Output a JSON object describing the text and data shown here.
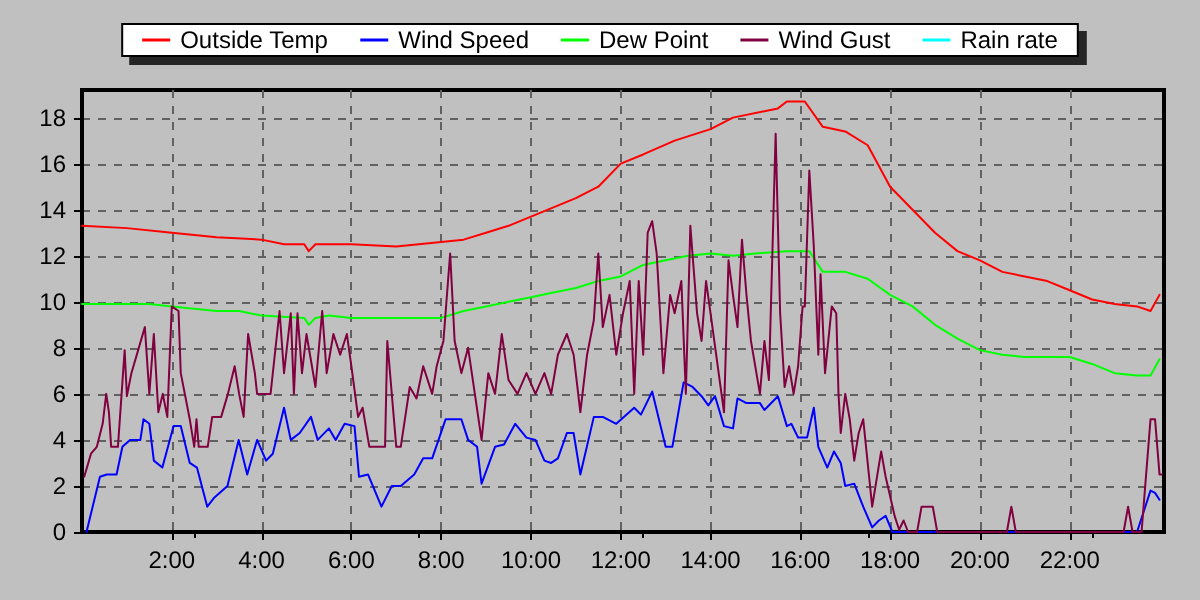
{
  "chart_data": {
    "type": "line",
    "xlim": [
      0,
      24.1
    ],
    "ylim": [
      0,
      19.2
    ],
    "xticks": [
      {
        "value": 2,
        "label": "2:00"
      },
      {
        "value": 4,
        "label": "4:00"
      },
      {
        "value": 6,
        "label": "6:00"
      },
      {
        "value": 8,
        "label": "8:00"
      },
      {
        "value": 10,
        "label": "10:00"
      },
      {
        "value": 12,
        "label": "12:00"
      },
      {
        "value": 14,
        "label": "14:00"
      },
      {
        "value": 16,
        "label": "16:00"
      },
      {
        "value": 18,
        "label": "18:00"
      },
      {
        "value": 20,
        "label": "20:00"
      },
      {
        "value": 22,
        "label": "22:00"
      }
    ],
    "yticks": [
      0,
      2,
      4,
      6,
      8,
      10,
      12,
      14,
      16,
      18
    ],
    "grid": true,
    "legend": "top",
    "marker": "none",
    "line_style": "solid",
    "series": [
      {
        "name": "Outside Temp",
        "color": "#ff0000",
        "x": [
          0,
          1,
          2,
          3,
          4,
          4.5,
          4.95,
          5.05,
          5.2,
          6,
          7,
          8,
          8.5,
          9,
          9.5,
          10,
          10.5,
          11,
          11.5,
          12,
          12.5,
          13.2,
          14,
          14.5,
          15.5,
          15.7,
          16.1,
          16.5,
          17,
          17.5,
          18,
          18.5,
          19,
          19.5,
          20,
          20.5,
          21,
          21.5,
          22,
          22.5,
          23,
          23.5,
          23.8,
          24
        ],
        "values": [
          13.3,
          13.2,
          13.0,
          12.8,
          12.7,
          12.5,
          12.5,
          12.2,
          12.5,
          12.5,
          12.4,
          12.6,
          12.7,
          13.0,
          13.3,
          13.7,
          14.1,
          14.5,
          15.0,
          16.0,
          16.4,
          17.0,
          17.5,
          18.0,
          18.4,
          18.7,
          18.7,
          17.6,
          17.4,
          16.8,
          15.0,
          14.0,
          13.0,
          12.2,
          11.8,
          11.3,
          11.1,
          10.9,
          10.5,
          10.1,
          9.9,
          9.8,
          9.6,
          10.3
        ]
      },
      {
        "name": "Wind Speed",
        "color": "#0000ff",
        "x": [
          0.1,
          0.4,
          0.55,
          0.77,
          0.9,
          1.07,
          1.3,
          1.37,
          1.5,
          1.6,
          1.79,
          2.04,
          2.2,
          2.4,
          2.56,
          2.79,
          2.95,
          3.24,
          3.49,
          3.68,
          3.9,
          4.1,
          4.25,
          4.5,
          4.65,
          4.85,
          5.1,
          5.25,
          5.5,
          5.65,
          5.85,
          6.07,
          6.17,
          6.37,
          6.67,
          6.9,
          7.1,
          7.4,
          7.6,
          7.8,
          8.1,
          8.45,
          8.6,
          8.8,
          8.9,
          9.2,
          9.4,
          9.65,
          9.9,
          10.1,
          10.3,
          10.45,
          10.6,
          10.8,
          10.95,
          11.1,
          11.4,
          11.6,
          11.9,
          12.3,
          12.45,
          12.7,
          12.85,
          13.0,
          13.15,
          13.4,
          13.6,
          13.8,
          13.95,
          14.1,
          14.3,
          14.5,
          14.6,
          14.8,
          15.1,
          15.2,
          15.5,
          15.7,
          15.8,
          15.95,
          16.15,
          16.3,
          16.4,
          16.6,
          16.75,
          16.9,
          17.0,
          17.2,
          17.4,
          17.6,
          17.75,
          17.9,
          18.05,
          23.5,
          23.8,
          23.9,
          24.0
        ],
        "values": [
          0,
          2.4,
          2.5,
          2.5,
          3.7,
          4.0,
          4.0,
          4.9,
          4.7,
          3.1,
          2.8,
          4.6,
          4.6,
          3.0,
          2.8,
          1.1,
          1.5,
          2.0,
          4.0,
          2.5,
          4.0,
          3.1,
          3.4,
          5.4,
          4.0,
          4.3,
          5.0,
          4.0,
          4.5,
          4.0,
          4.7,
          4.6,
          2.4,
          2.5,
          1.1,
          2.0,
          2.0,
          2.5,
          3.2,
          3.2,
          4.9,
          4.9,
          4.0,
          3.7,
          2.1,
          3.7,
          3.8,
          4.7,
          4.1,
          4.0,
          3.1,
          3.0,
          3.2,
          4.3,
          4.3,
          2.5,
          5.0,
          5.0,
          4.7,
          5.4,
          5.1,
          6.1,
          4.9,
          3.7,
          3.7,
          6.5,
          6.3,
          5.9,
          5.5,
          5.9,
          4.6,
          4.5,
          5.8,
          5.6,
          5.6,
          5.3,
          5.9,
          4.6,
          4.7,
          4.1,
          4.1,
          5.4,
          3.7,
          2.8,
          3.5,
          3.0,
          2.0,
          2.1,
          1.1,
          0.2,
          0.5,
          0.7,
          0,
          0,
          1.8,
          1.7,
          1.4
        ]
      },
      {
        "name": "Dew Point",
        "color": "#00ff00",
        "x": [
          0,
          1,
          1.5,
          2,
          3,
          3.5,
          4,
          4.95,
          5.05,
          5.2,
          5.5,
          6,
          7,
          8,
          8.5,
          9,
          9.5,
          10,
          10.5,
          11,
          11.5,
          12,
          12.5,
          13,
          13.5,
          14,
          14.5,
          15,
          15.7,
          16.2,
          16.5,
          17,
          17.5,
          18,
          18.5,
          19,
          19.5,
          20,
          20.5,
          21,
          21.5,
          22,
          22.5,
          23,
          23.5,
          23.8,
          24
        ],
        "values": [
          9.9,
          9.9,
          9.9,
          9.8,
          9.6,
          9.6,
          9.4,
          9.3,
          9.0,
          9.3,
          9.4,
          9.3,
          9.3,
          9.3,
          9.6,
          9.8,
          10.0,
          10.2,
          10.4,
          10.6,
          10.9,
          11.1,
          11.6,
          11.8,
          12.0,
          12.1,
          12.0,
          12.1,
          12.2,
          12.2,
          11.3,
          11.3,
          11.0,
          10.3,
          9.8,
          9.0,
          8.4,
          7.9,
          7.7,
          7.6,
          7.6,
          7.6,
          7.3,
          6.9,
          6.8,
          6.8,
          7.5
        ]
      },
      {
        "name": "Wind Gust",
        "color": "#800040",
        "x": [
          0.05,
          0.2,
          0.33,
          0.46,
          0.54,
          0.6,
          0.65,
          0.8,
          0.95,
          1.0,
          1.1,
          1.4,
          1.5,
          1.6,
          1.7,
          1.8,
          1.9,
          2.0,
          2.15,
          2.2,
          2.4,
          2.5,
          2.55,
          2.6,
          2.8,
          2.9,
          3.1,
          3.25,
          3.4,
          3.5,
          3.6,
          3.7,
          3.85,
          3.9,
          4.2,
          4.4,
          4.5,
          4.65,
          4.72,
          4.8,
          4.9,
          5.0,
          5.2,
          5.35,
          5.45,
          5.6,
          5.75,
          5.9,
          6.0,
          6.15,
          6.25,
          6.4,
          6.75,
          6.8,
          7.0,
          7.1,
          7.3,
          7.45,
          7.6,
          7.8,
          7.9,
          8.05,
          8.2,
          8.3,
          8.45,
          8.6,
          8.75,
          8.9,
          9.05,
          9.2,
          9.35,
          9.5,
          9.7,
          9.9,
          10.1,
          10.3,
          10.45,
          10.6,
          10.8,
          10.95,
          11.1,
          11.25,
          11.4,
          11.5,
          11.6,
          11.75,
          11.9,
          12.05,
          12.2,
          12.3,
          12.4,
          12.5,
          12.6,
          12.7,
          12.8,
          12.95,
          13.1,
          13.2,
          13.35,
          13.45,
          13.55,
          13.7,
          13.8,
          13.9,
          14.0,
          14.3,
          14.4,
          14.5,
          14.6,
          14.7,
          14.8,
          14.9,
          15.1,
          15.2,
          15.3,
          15.45,
          15.55,
          15.65,
          15.75,
          15.85,
          15.95,
          16.05,
          16.1,
          16.2,
          16.3,
          16.4,
          16.45,
          16.55,
          16.7,
          16.8,
          16.85,
          16.9,
          17.0,
          17.1,
          17.2,
          17.3,
          17.4,
          17.6,
          17.8,
          17.9,
          18.1,
          18.2,
          18.3,
          18.4,
          18.6,
          18.7,
          18.95,
          19.05,
          20.6,
          20.7,
          20.8,
          23.2,
          23.3,
          23.4,
          23.6,
          23.8,
          23.9,
          24.0,
          24.05
        ],
        "values": [
          2.4,
          3.4,
          3.7,
          4.7,
          6.0,
          5.2,
          3.7,
          3.7,
          7.9,
          5.9,
          6.9,
          8.9,
          6.0,
          8.6,
          5.2,
          6.0,
          5.0,
          9.8,
          9.6,
          6.9,
          4.9,
          3.7,
          4.9,
          3.7,
          3.7,
          5.0,
          5.0,
          6.0,
          7.2,
          6.0,
          5.0,
          8.6,
          6.9,
          6.0,
          6.0,
          9.6,
          6.9,
          9.5,
          6.0,
          9.5,
          6.9,
          8.6,
          6.3,
          9.6,
          6.9,
          8.6,
          7.7,
          8.6,
          7.2,
          5.0,
          5.4,
          3.7,
          3.7,
          8.3,
          3.7,
          3.7,
          6.3,
          5.8,
          7.2,
          6.0,
          7.2,
          8.3,
          12.1,
          8.3,
          6.9,
          8.0,
          6.0,
          4.0,
          6.9,
          6.0,
          8.6,
          6.6,
          6.0,
          6.9,
          6.0,
          6.9,
          6.0,
          7.7,
          8.6,
          7.7,
          5.2,
          7.7,
          9.2,
          12.1,
          8.9,
          10.3,
          7.7,
          9.5,
          10.9,
          6.0,
          10.9,
          7.7,
          13.0,
          13.5,
          12.1,
          6.9,
          10.3,
          9.5,
          10.9,
          6.0,
          13.3,
          9.5,
          8.3,
          10.9,
          9.5,
          5.2,
          11.8,
          10.3,
          8.9,
          12.7,
          10.3,
          8.3,
          6.0,
          8.3,
          6.6,
          17.3,
          9.5,
          6.3,
          7.2,
          6.0,
          7.2,
          9.8,
          9.8,
          15.7,
          12.4,
          7.7,
          11.2,
          6.9,
          9.8,
          9.5,
          6.0,
          4.3,
          6.0,
          4.9,
          3.1,
          4.3,
          4.9,
          1.1,
          3.5,
          2.4,
          0.7,
          0.1,
          0.5,
          0,
          0,
          1.1,
          1.1,
          0,
          0,
          1.1,
          0,
          0,
          1.1,
          0,
          0,
          4.9,
          4.9,
          2.5,
          2.5
        ]
      },
      {
        "name": "Rain rate",
        "color": "#00ffff"
      }
    ]
  }
}
